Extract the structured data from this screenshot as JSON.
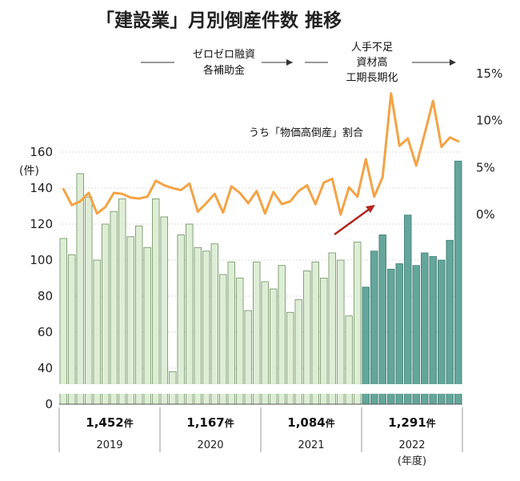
{
  "title": "「建設業」月別倒産件数  推移",
  "annotations": {
    "phase1": [
      "ゼロゼロ融資",
      "各補助金"
    ],
    "phase2": [
      "人手不足",
      "資材高",
      "工期長期化"
    ],
    "ratio_label": "うち「物価高倒産」割合"
  },
  "colors": {
    "bar_light": "#deeed6",
    "bar_light_stroke": "#6e8f62",
    "bar_dark": "#64a69b",
    "bar_dark_stroke": "#3f7c72",
    "line": "#f4a345",
    "arrow": "#b2261e",
    "grid": "#bbbbbb"
  },
  "chart_data": {
    "type": "bar+line",
    "y_left": {
      "ticks": [
        "160",
        "140",
        "120",
        "100",
        "80",
        "60",
        "40",
        "0"
      ],
      "unit": "(件)",
      "range": [
        0,
        160
      ],
      "break_between": [
        0,
        40
      ]
    },
    "y_right": {
      "ticks": [
        "15%",
        "10%",
        "5%",
        "0%"
      ],
      "range": [
        0,
        15
      ]
    },
    "years": [
      {
        "label": "2019",
        "total": "1,452",
        "unit": "件"
      },
      {
        "label": "2020",
        "total": "1,167",
        "unit": "件"
      },
      {
        "label": "2021",
        "total": "1,084",
        "unit": "件"
      },
      {
        "label": "2022",
        "total": "1,291",
        "unit": "件"
      }
    ],
    "fiscal_unit": "(年度)",
    "series": [
      {
        "type": "bar",
        "values": [
          112,
          103,
          148,
          135,
          100,
          120,
          127,
          134,
          113,
          119,
          107,
          134,
          124,
          36,
          114,
          120,
          107,
          105,
          109,
          92,
          99,
          90,
          72,
          99,
          88,
          84,
          97,
          71,
          78,
          94,
          99,
          90,
          104,
          100,
          69,
          110,
          85,
          105,
          114,
          95,
          98,
          125,
          97,
          104,
          102,
          100,
          111,
          155
        ]
      },
      {
        "type": "line",
        "name": "うち「物価高倒産」割合",
        "values": [
          2.7,
          1.0,
          1.4,
          2.3,
          0.1,
          0.8,
          2.3,
          2.2,
          1.8,
          1.7,
          1.9,
          3.6,
          3.1,
          2.8,
          2.6,
          3.3,
          0.3,
          1.2,
          2.2,
          0.2,
          3.0,
          2.3,
          1.2,
          2.5,
          0.1,
          2.4,
          1.1,
          1.4,
          2.5,
          3.1,
          1.1,
          3.4,
          3.8,
          0.0,
          2.9,
          1.9,
          5.9,
          1.9,
          4.0,
          12.9,
          7.3,
          8.1,
          5.2,
          8.6,
          12.1,
          7.2,
          8.2,
          7.8
        ]
      }
    ]
  }
}
